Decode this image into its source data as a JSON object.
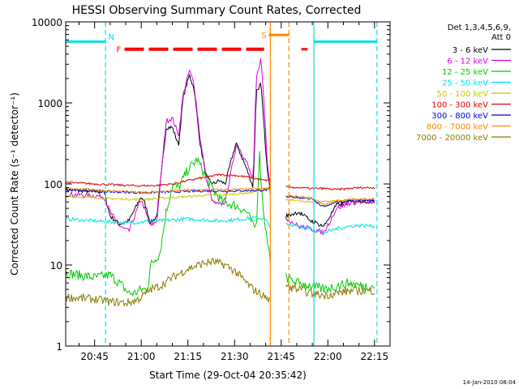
{
  "chart_data": {
    "type": "line",
    "title": "HESSI Observing Summary Count Rates, Corrected",
    "xlabel": "Start Time (29-Oct-04 20:35:42)",
    "ylabel": "Corrected Count Rate (s⁻¹ detector⁻¹)",
    "yscale": "log",
    "ylim": [
      1,
      10000
    ],
    "x_units": "minutes of day",
    "xlim": [
      1235.7,
      1340
    ],
    "x_ticks": [
      {
        "value": 1245,
        "label": "20:45"
      },
      {
        "value": 1260,
        "label": "21:00"
      },
      {
        "value": 1275,
        "label": "21:15"
      },
      {
        "value": 1290,
        "label": "21:30"
      },
      {
        "value": 1305,
        "label": "21:45"
      },
      {
        "value": 1320,
        "label": "22:00"
      },
      {
        "value": 1335,
        "label": "22:15"
      }
    ],
    "y_ticks": [
      {
        "value": 1,
        "label": "1"
      },
      {
        "value": 10,
        "label": "10"
      },
      {
        "value": 100,
        "label": "100"
      },
      {
        "value": 1000,
        "label": "1000"
      },
      {
        "value": 10000,
        "label": "10000"
      }
    ],
    "legend_header": [
      "Det 1,3,4,5,6,9,",
      "Att 0"
    ],
    "legend_position": "right",
    "timestamp": "14-Jan-2010 08:04",
    "series": [
      {
        "name": "3 - 6 keV",
        "color": "#000000",
        "x": [
          1235.7,
          1248,
          1250,
          1253,
          1256,
          1260,
          1261,
          1263,
          1265,
          1268,
          1270,
          1272,
          1273.5,
          1275.5,
          1277,
          1279,
          1281,
          1283,
          1285,
          1287,
          1289,
          1290.5,
          1292,
          1294,
          1296,
          1297,
          1298.5,
          1299.5,
          1300.5,
          1301.5
        ],
        "y": [
          85,
          80,
          40,
          32,
          35,
          70,
          60,
          33,
          40,
          500,
          500,
          300,
          1200,
          2200,
          1500,
          300,
          120,
          100,
          110,
          100,
          200,
          320,
          230,
          150,
          90,
          1400,
          1700,
          500,
          150,
          80
        ]
      },
      {
        "name": "6 - 12 keV",
        "color": "#e000e0",
        "x": [
          1235.7,
          1248,
          1250,
          1253,
          1256,
          1260,
          1261,
          1263,
          1265,
          1268,
          1270,
          1272,
          1273.5,
          1275.5,
          1277,
          1279,
          1281,
          1283,
          1285,
          1287,
          1289,
          1290.5,
          1292,
          1294,
          1296,
          1297,
          1298.5,
          1299.5,
          1300.5,
          1301.5
        ],
        "y": [
          75,
          70,
          45,
          30,
          26,
          65,
          50,
          30,
          35,
          600,
          650,
          400,
          1300,
          2500,
          1700,
          350,
          110,
          60,
          55,
          60,
          150,
          300,
          260,
          180,
          110,
          2000,
          3600,
          1000,
          200,
          90
        ]
      },
      {
        "name": "12 - 25 keV",
        "color": "#00cc00",
        "x": [
          1235.7,
          1245,
          1250,
          1253,
          1256,
          1258,
          1260,
          1262,
          1263,
          1266,
          1268,
          1270,
          1272,
          1275,
          1278,
          1280,
          1283,
          1286,
          1290,
          1294,
          1296,
          1297,
          1298,
          1299,
          1300.5,
          1301.5
        ],
        "y": [
          8,
          7,
          7.5,
          6,
          4.5,
          4.5,
          5,
          5,
          10,
          14,
          45,
          95,
          90,
          150,
          200,
          140,
          85,
          60,
          55,
          45,
          30,
          30,
          250,
          60,
          20,
          12
        ]
      },
      {
        "name": "25 - 50 keV",
        "color": "#00e0e0",
        "x": [
          1235.7,
          1245,
          1250,
          1255,
          1260,
          1265,
          1270,
          1275,
          1280,
          1285,
          1290,
          1295,
          1298,
          1300,
          1301.5
        ],
        "y": [
          37,
          35,
          34,
          33,
          34,
          35,
          36,
          37,
          36,
          35,
          36,
          38,
          38,
          36,
          30
        ]
      },
      {
        "name": "50 - 100 keV",
        "color": "#c8c800",
        "x": [
          1235.7,
          1245,
          1250,
          1255,
          1260,
          1265,
          1270,
          1275,
          1280,
          1285,
          1290,
          1295,
          1300,
          1301.5
        ],
        "y": [
          70,
          68,
          66,
          65,
          64,
          66,
          68,
          70,
          72,
          73,
          75,
          78,
          85,
          90
        ]
      },
      {
        "name": "100 - 300 keV",
        "color": "#e00000",
        "x": [
          1235.7,
          1245,
          1250,
          1255,
          1260,
          1265,
          1270,
          1275,
          1280,
          1285,
          1290,
          1295,
          1300,
          1301.5
        ],
        "y": [
          105,
          100,
          98,
          96,
          95,
          96,
          100,
          110,
          120,
          130,
          128,
          120,
          110,
          115
        ]
      },
      {
        "name": "300 - 800 keV",
        "color": "#0000e0",
        "x": [
          1235.7,
          1245,
          1250,
          1255,
          1260,
          1265,
          1270,
          1275,
          1280,
          1285,
          1290,
          1295,
          1300,
          1301.5
        ],
        "y": [
          84,
          82,
          80,
          79,
          78,
          79,
          80,
          81,
          82,
          82,
          82,
          83,
          84,
          88
        ]
      },
      {
        "name": "800 - 7000 keV",
        "color": "#ff8800",
        "x": [
          1235.7,
          1245,
          1250,
          1255,
          1260,
          1265,
          1270,
          1275,
          1280,
          1285,
          1290,
          1295,
          1300,
          1301.5
        ],
        "y": [
          88,
          85,
          82,
          80,
          79,
          80,
          82,
          84,
          85,
          85,
          85,
          86,
          88,
          92
        ]
      },
      {
        "name": "7000 - 20000 keV",
        "color": "#8b7d00",
        "x": [
          1235.7,
          1245,
          1250,
          1252,
          1255,
          1258,
          1260,
          1263,
          1266,
          1270,
          1275,
          1280,
          1283,
          1287,
          1290,
          1293,
          1296,
          1298,
          1300,
          1301.5
        ],
        "y": [
          4,
          3.8,
          3.5,
          3.5,
          3.4,
          3.6,
          4,
          5,
          5.5,
          7,
          9,
          10.5,
          11,
          10,
          8.5,
          6.5,
          5,
          4.5,
          4,
          3.6
        ]
      }
    ],
    "segment_after_gap": {
      "x_start": 1306.5,
      "x_end": 1335,
      "levels": [
        {
          "name": "3 - 6 keV",
          "y": [
            40,
            45,
            35,
            30,
            55,
            60,
            62,
            60
          ]
        },
        {
          "name": "6 - 12 keV",
          "y": [
            38,
            30,
            28,
            25,
            50,
            58,
            60,
            60
          ]
        },
        {
          "name": "12 - 25 keV",
          "y": [
            7,
            6,
            5.5,
            5,
            5.5,
            6,
            5.5,
            5.5
          ]
        },
        {
          "name": "25 - 50 keV",
          "y": [
            32,
            30,
            28,
            25,
            28,
            30,
            31,
            30
          ]
        },
        {
          "name": "50 - 100 keV",
          "y": [
            65,
            62,
            60,
            60,
            62,
            63,
            64,
            64
          ]
        },
        {
          "name": "100 - 300 keV",
          "y": [
            92,
            90,
            88,
            88,
            85,
            88,
            90,
            90
          ]
        },
        {
          "name": "300 - 800 keV",
          "y": [
            70,
            68,
            66,
            52,
            60,
            62,
            63,
            63
          ]
        },
        {
          "name": "800 - 7000 keV",
          "y": [
            72,
            70,
            68,
            55,
            62,
            64,
            65,
            65
          ]
        },
        {
          "name": "7000 - 20000 keV",
          "y": [
            5.5,
            5,
            4.5,
            4.2,
            4.5,
            4.8,
            4.8,
            4.8
          ]
        }
      ]
    },
    "annotations": [
      {
        "type": "bar",
        "label": "",
        "color": "#00e0e0",
        "x_start": 1235.7,
        "x_end": 1248.5,
        "y": 5700
      },
      {
        "type": "bar",
        "label": "",
        "color": "#00e0e0",
        "x_start": 1315.5,
        "x_end": 1335.8,
        "y": 5700
      },
      {
        "type": "bar",
        "label": "F",
        "color": "#ff0000",
        "x_start": 1252,
        "x_end": 1299.5,
        "y": 4600
      },
      {
        "type": "bar",
        "label": "",
        "color": "#ff0000",
        "x_start": 1311.5,
        "x_end": 1313.5,
        "y": 4600
      },
      {
        "type": "bar",
        "label": "S",
        "color": "#ff8800",
        "x_start": 1301,
        "x_end": 1307.5,
        "y": 6900
      },
      {
        "type": "marker",
        "label": "N",
        "color": "#00e0e0",
        "x": 1248.5
      },
      {
        "type": "vline",
        "label": "",
        "color": "#00e0e0",
        "x": 1248.5,
        "style": "dashed"
      },
      {
        "type": "vline",
        "label": "",
        "color": "#00e0e0",
        "x": 1315.5,
        "style": "solid"
      },
      {
        "type": "vline",
        "label": "",
        "color": "#00e0e0",
        "x": 1335.8,
        "style": "dashed"
      },
      {
        "type": "vline",
        "label": "",
        "color": "#ff8800",
        "x": 1301.5,
        "style": "solid"
      },
      {
        "type": "vline",
        "label": "",
        "color": "#ff8800",
        "x": 1307.5,
        "style": "dashed"
      }
    ]
  }
}
